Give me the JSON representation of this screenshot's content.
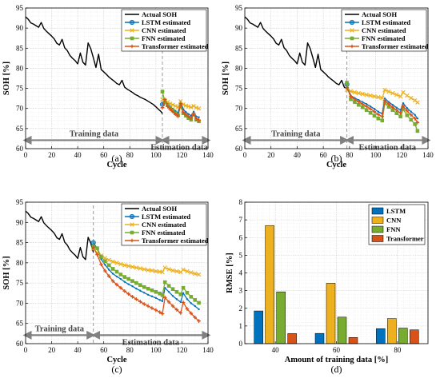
{
  "colors": {
    "actual": "#000000",
    "lstm": "#0072BD",
    "cnn": "#EDB120",
    "fnn": "#77AC30",
    "transformer": "#D95319",
    "arrow": "#808080"
  },
  "chart_data": [
    {
      "type": "line",
      "caption": "(a)",
      "xlabel": "Cycle",
      "ylabel": "SOH [%]",
      "xlim": [
        0,
        140
      ],
      "ylim": [
        60,
        95
      ],
      "xticks": [
        "0",
        "20",
        "40",
        "60",
        "80",
        "100",
        "120",
        "140"
      ],
      "yticks": [
        "60",
        "65",
        "70",
        "75",
        "80",
        "85",
        "90",
        "95"
      ],
      "grid": true,
      "legend_position": "top-right",
      "split_cycle": 105,
      "annotations": [
        "Training data",
        "Estimation data"
      ],
      "series": [
        {
          "name": "Actual SOH",
          "x": [
            0,
            2,
            4,
            6,
            8,
            10,
            12,
            14,
            16,
            18,
            20,
            22,
            24,
            26,
            28,
            30,
            32,
            34,
            36,
            38,
            40,
            42,
            44,
            46,
            48,
            50,
            52,
            54,
            56,
            58,
            60,
            62,
            64,
            66,
            68,
            70,
            72,
            74,
            76,
            78,
            80,
            82,
            84,
            86,
            88,
            90,
            92,
            94,
            96,
            98,
            100,
            102,
            104,
            105
          ],
          "y": [
            92.8,
            92.2,
            91.3,
            91,
            90.6,
            90.2,
            91.4,
            89.9,
            89.2,
            88.6,
            88,
            87.3,
            86.2,
            85.8,
            87.2,
            85.1,
            84.4,
            83.2,
            82.5,
            81.9,
            81.1,
            83.8,
            81.5,
            80.8,
            86.3,
            84.9,
            82.6,
            80.2,
            83.5,
            79.7,
            79.1,
            78.5,
            77.8,
            77.3,
            76.8,
            76.2,
            75.9,
            77,
            75.3,
            74.8,
            74.4,
            74,
            73.5,
            73.2,
            72.8,
            72.5,
            72.2,
            71.8,
            71.4,
            71,
            70.4,
            69.8,
            69.2,
            68.7
          ]
        },
        {
          "name": "LSTM estimated",
          "x": [
            105,
            107,
            109,
            111,
            113,
            115,
            117,
            119,
            121,
            123,
            125,
            127,
            129,
            131,
            133
          ],
          "y": [
            71,
            71.8,
            71.2,
            70.5,
            69.9,
            69.4,
            68.9,
            71.8,
            69.8,
            69.1,
            68.6,
            68.2,
            69.2,
            68,
            67.8
          ]
        },
        {
          "name": "CNN estimated",
          "x": [
            105,
            107,
            109,
            111,
            113,
            115,
            117,
            119,
            121,
            123,
            125,
            127,
            129,
            131,
            133
          ],
          "y": [
            72.2,
            72,
            71.6,
            71.2,
            70.9,
            70.6,
            70.3,
            71.8,
            71,
            70.7,
            70.5,
            70.3,
            70.6,
            70.2,
            70
          ]
        },
        {
          "name": "FNN estimated",
          "x": [
            105,
            107,
            109,
            111,
            113,
            115,
            117,
            119,
            121,
            123,
            125,
            127,
            129,
            131,
            133
          ],
          "y": [
            74.2,
            71.5,
            70.8,
            70.1,
            69.5,
            68.8,
            68.3,
            70.5,
            68.8,
            68.2,
            67.6,
            67.2,
            68.5,
            67.2,
            66.8
          ]
        },
        {
          "name": "Transformer estimated",
          "x": [
            105,
            107,
            109,
            111,
            113,
            115,
            117,
            119,
            121,
            123,
            125,
            127,
            129,
            131,
            133
          ],
          "y": [
            70.2,
            72.2,
            70.5,
            69.8,
            69.2,
            68.6,
            68.1,
            71.2,
            69.1,
            68.5,
            68,
            67.6,
            68.6,
            67.4,
            67.1
          ]
        }
      ]
    },
    {
      "type": "line",
      "caption": "(b)",
      "xlabel": "Cycle",
      "ylabel": "SOH [%]",
      "xlim": [
        0,
        140
      ],
      "ylim": [
        60,
        95
      ],
      "xticks": [
        "0",
        "20",
        "40",
        "60",
        "80",
        "100",
        "120",
        "140"
      ],
      "yticks": [
        "60",
        "65",
        "70",
        "75",
        "80",
        "85",
        "90",
        "95"
      ],
      "grid": true,
      "legend_position": "top-right",
      "split_cycle": 78,
      "annotations": [
        "Training data",
        "Estimation data"
      ],
      "series": [
        {
          "name": "Actual SOH",
          "x": [
            0,
            2,
            4,
            6,
            8,
            10,
            12,
            14,
            16,
            18,
            20,
            22,
            24,
            26,
            28,
            30,
            32,
            34,
            36,
            38,
            40,
            42,
            44,
            46,
            48,
            50,
            52,
            54,
            56,
            58,
            60,
            62,
            64,
            66,
            68,
            70,
            72,
            74,
            76,
            78
          ],
          "y": [
            92.8,
            92.2,
            91.3,
            91,
            90.6,
            90.2,
            91.4,
            89.9,
            89.2,
            88.6,
            88,
            87.3,
            86.2,
            85.8,
            87.2,
            85.1,
            84.4,
            83.2,
            82.5,
            81.9,
            81.1,
            83.8,
            81.5,
            80.8,
            86.3,
            84.9,
            82.6,
            80.2,
            83.5,
            79.7,
            79.1,
            78.5,
            77.8,
            77.3,
            76.8,
            76.2,
            75.9,
            77,
            75.3,
            74.8
          ]
        },
        {
          "name": "LSTM estimated",
          "x": [
            78,
            81,
            84,
            87,
            90,
            93,
            96,
            99,
            102,
            105,
            107,
            110,
            113,
            116,
            119,
            121,
            124,
            127,
            130,
            132
          ],
          "y": [
            76,
            73.2,
            72.6,
            72.1,
            71.6,
            71.1,
            70.5,
            69.9,
            69.2,
            68.7,
            72.5,
            71.6,
            70.9,
            70.2,
            69.6,
            71.3,
            70.1,
            69.2,
            68.4,
            67.5
          ]
        },
        {
          "name": "CNN estimated",
          "x": [
            78,
            81,
            84,
            87,
            90,
            93,
            96,
            99,
            102,
            105,
            107,
            110,
            113,
            116,
            119,
            121,
            124,
            127,
            130,
            132
          ],
          "y": [
            74.6,
            74.3,
            74,
            73.8,
            73.6,
            73.4,
            73.2,
            73,
            72.8,
            72.6,
            74.6,
            74.2,
            73.8,
            73.4,
            73,
            74,
            73.2,
            72.6,
            72,
            71.5
          ]
        },
        {
          "name": "FNN estimated",
          "x": [
            78,
            81,
            84,
            87,
            90,
            93,
            96,
            99,
            102,
            105,
            107,
            110,
            113,
            116,
            119,
            121,
            124,
            127,
            130,
            132
          ],
          "y": [
            76.4,
            72.3,
            71.6,
            70.9,
            70.3,
            69.6,
            68.9,
            68.2,
            67.5,
            67,
            71.3,
            70.4,
            69.6,
            68.8,
            68,
            69.8,
            68.3,
            67.2,
            66.1,
            64.4
          ]
        },
        {
          "name": "Transformer estimated",
          "x": [
            78,
            81,
            84,
            87,
            90,
            93,
            96,
            99,
            102,
            105,
            107,
            110,
            113,
            116,
            119,
            121,
            124,
            127,
            130,
            132
          ],
          "y": [
            75.2,
            73,
            72.3,
            71.7,
            71.1,
            70.5,
            69.9,
            69.2,
            68.5,
            68,
            72,
            71.1,
            70.3,
            69.6,
            68.9,
            70.6,
            69.4,
            68.4,
            67.5,
            66.5
          ]
        }
      ]
    },
    {
      "type": "line",
      "caption": "(c)",
      "xlabel": "Cycle",
      "ylabel": "SOH [%]",
      "xlim": [
        0,
        140
      ],
      "ylim": [
        60,
        95
      ],
      "xticks": [
        "0",
        "20",
        "40",
        "60",
        "80",
        "100",
        "120",
        "140"
      ],
      "yticks": [
        "60",
        "65",
        "70",
        "75",
        "80",
        "85",
        "90",
        "95"
      ],
      "grid": true,
      "legend_position": "top-right",
      "split_cycle": 52,
      "annotations": [
        "Training data",
        "Estimation data"
      ],
      "series": [
        {
          "name": "Actual SOH",
          "x": [
            0,
            2,
            4,
            6,
            8,
            10,
            12,
            14,
            16,
            18,
            20,
            22,
            24,
            26,
            28,
            30,
            32,
            34,
            36,
            38,
            40,
            42,
            44,
            46,
            48,
            50,
            52
          ],
          "y": [
            92.8,
            92.2,
            91.3,
            91,
            90.6,
            90.2,
            91.4,
            89.9,
            89.2,
            88.6,
            88,
            87.3,
            86.2,
            85.8,
            87.2,
            85.1,
            84.4,
            83.2,
            82.5,
            81.9,
            81.1,
            83.8,
            81.5,
            80.8,
            86.3,
            84.9,
            82.6
          ]
        },
        {
          "name": "LSTM estimated",
          "x": [
            52,
            55,
            58,
            61,
            64,
            67,
            70,
            73,
            76,
            79,
            82,
            85,
            88,
            91,
            94,
            97,
            100,
            103,
            105,
            107,
            110,
            113,
            116,
            119,
            121,
            124,
            127,
            130,
            133
          ],
          "y": [
            85,
            83.5,
            80.9,
            79.5,
            78.3,
            77.3,
            76.6,
            76,
            75.3,
            74.7,
            74.2,
            73.6,
            73.1,
            72.6,
            72.1,
            71.7,
            71.3,
            70.8,
            70.5,
            73.8,
            72.8,
            71.8,
            71,
            70.3,
            72.5,
            71,
            70,
            69.3,
            68.5
          ]
        },
        {
          "name": "CNN estimated",
          "x": [
            52,
            55,
            58,
            61,
            64,
            67,
            70,
            73,
            76,
            79,
            82,
            85,
            88,
            91,
            94,
            97,
            100,
            103,
            105,
            107,
            110,
            113,
            116,
            119,
            121,
            124,
            127,
            130,
            133
          ],
          "y": [
            83.5,
            82.5,
            81.8,
            81.2,
            80.7,
            80.3,
            80,
            79.7,
            79.4,
            79.2,
            79,
            78.8,
            78.6,
            78.4,
            78.2,
            78.1,
            77.9,
            77.8,
            77.7,
            78.8,
            78.4,
            78.1,
            77.9,
            77.7,
            78.3,
            77.9,
            77.6,
            77.3,
            77.1
          ]
        },
        {
          "name": "FNN estimated",
          "x": [
            52,
            55,
            58,
            61,
            64,
            67,
            70,
            73,
            76,
            79,
            82,
            85,
            88,
            91,
            94,
            97,
            100,
            103,
            105,
            107,
            110,
            113,
            116,
            119,
            121,
            124,
            127,
            130,
            133
          ],
          "y": [
            84,
            83.6,
            81.5,
            80.4,
            79.4,
            78.5,
            77.8,
            77.1,
            76.5,
            76,
            75.5,
            75,
            74.5,
            74,
            73.6,
            73.2,
            72.8,
            72.4,
            72,
            75.2,
            74.3,
            73.5,
            72.8,
            72.2,
            73.8,
            72.6,
            71.6,
            70.8,
            70.1
          ]
        },
        {
          "name": "Transformer estimated",
          "x": [
            52,
            55,
            58,
            61,
            64,
            67,
            70,
            73,
            76,
            79,
            82,
            85,
            88,
            91,
            94,
            97,
            100,
            103,
            105,
            107,
            110,
            113,
            116,
            119,
            121,
            124,
            127,
            130,
            133
          ],
          "y": [
            83.8,
            82,
            79.6,
            78,
            76.7,
            75.5,
            74.6,
            73.8,
            73,
            72.3,
            71.6,
            71,
            70.4,
            69.8,
            69.3,
            68.8,
            68.3,
            67.8,
            67.4,
            71.4,
            70.3,
            69.3,
            68.4,
            67.6,
            70.2,
            68.6,
            67.5,
            66.5,
            65.6
          ]
        }
      ]
    },
    {
      "type": "bar",
      "caption": "(d)",
      "xlabel": "Amount of training data [%]",
      "ylabel": "RMSE [%]",
      "ylim": [
        0,
        8
      ],
      "yticks": [
        "0",
        "1",
        "2",
        "3",
        "4",
        "5",
        "6",
        "7",
        "8"
      ],
      "categories": [
        "40",
        "60",
        "80"
      ],
      "grid": true,
      "legend_position": "top-right",
      "series": [
        {
          "name": "LSTM",
          "values": [
            1.85,
            0.58,
            0.85
          ]
        },
        {
          "name": "CNN",
          "values": [
            6.68,
            3.42,
            1.42
          ]
        },
        {
          "name": "FNN",
          "values": [
            2.93,
            1.5,
            0.88
          ]
        },
        {
          "name": "Transformer",
          "values": [
            0.57,
            0.35,
            0.78
          ]
        }
      ]
    }
  ]
}
